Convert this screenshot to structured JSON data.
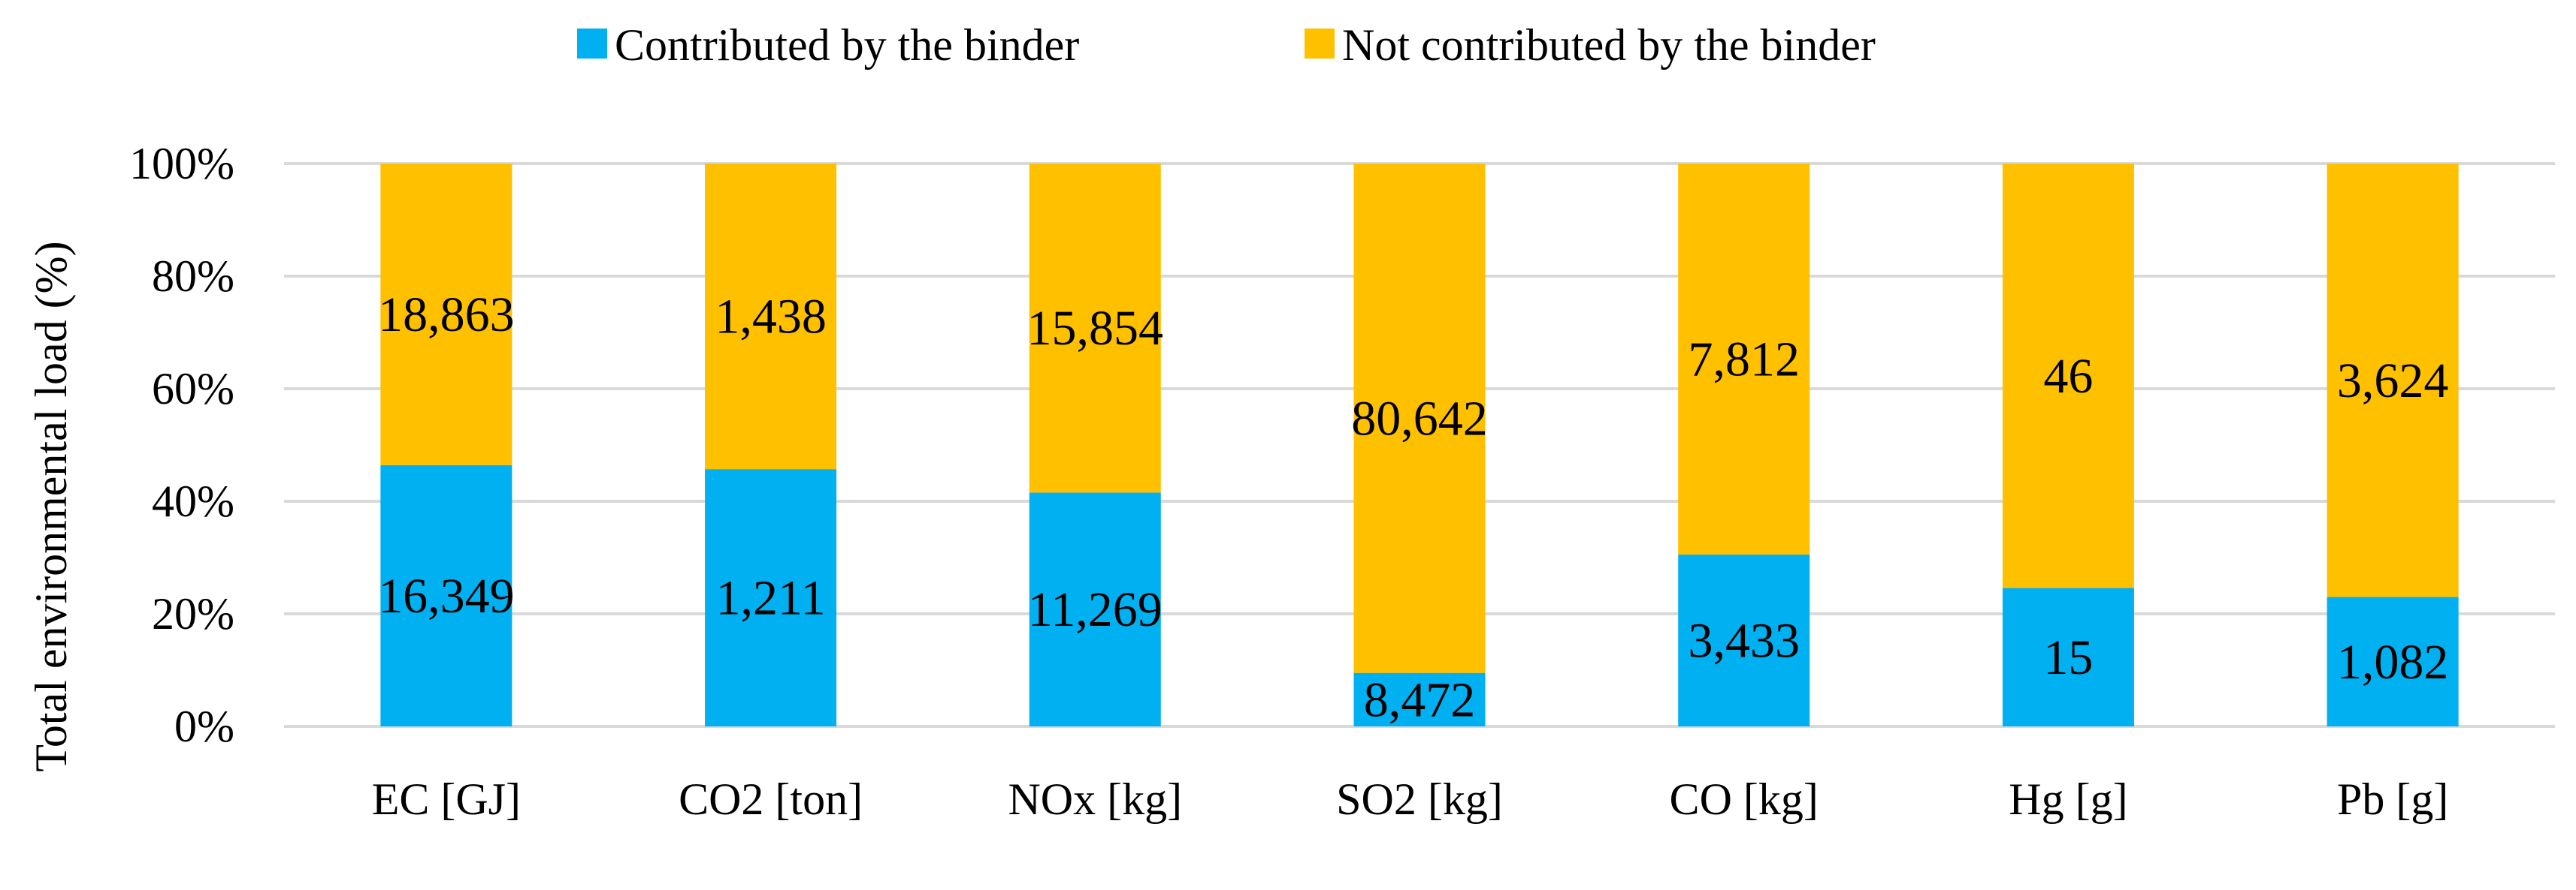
{
  "chart_data": {
    "type": "bar",
    "stacked": true,
    "normalized": true,
    "categories": [
      "EC [GJ]",
      "CO2 [ton]",
      "NOx [kg]",
      "SO2 [kg]",
      "CO [kg]",
      "Hg [g]",
      "Pb [g]"
    ],
    "series": [
      {
        "name": "Contributed by the binder",
        "color": "#00B0F0",
        "values": [
          16349,
          1211,
          11269,
          8472,
          3433,
          15,
          1082
        ],
        "labels": [
          "16,349",
          "1,211",
          "11,269",
          "8,472",
          "3,433",
          "15",
          "1,082"
        ]
      },
      {
        "name": "Not contributed by the binder",
        "color": "#FFC000",
        "values": [
          18863,
          1438,
          15854,
          80642,
          7812,
          46,
          3624
        ],
        "labels": [
          "18,863",
          "1,438",
          "15,854",
          "80,642",
          "7,812",
          "46",
          "3,624"
        ]
      }
    ],
    "ylabel": "Total environmental load (%)",
    "xlabel": "",
    "ylim": [
      0,
      100
    ],
    "yticks": [
      "0%",
      "20%",
      "40%",
      "60%",
      "80%",
      "100%"
    ],
    "grid": true,
    "legend_position": "top"
  }
}
